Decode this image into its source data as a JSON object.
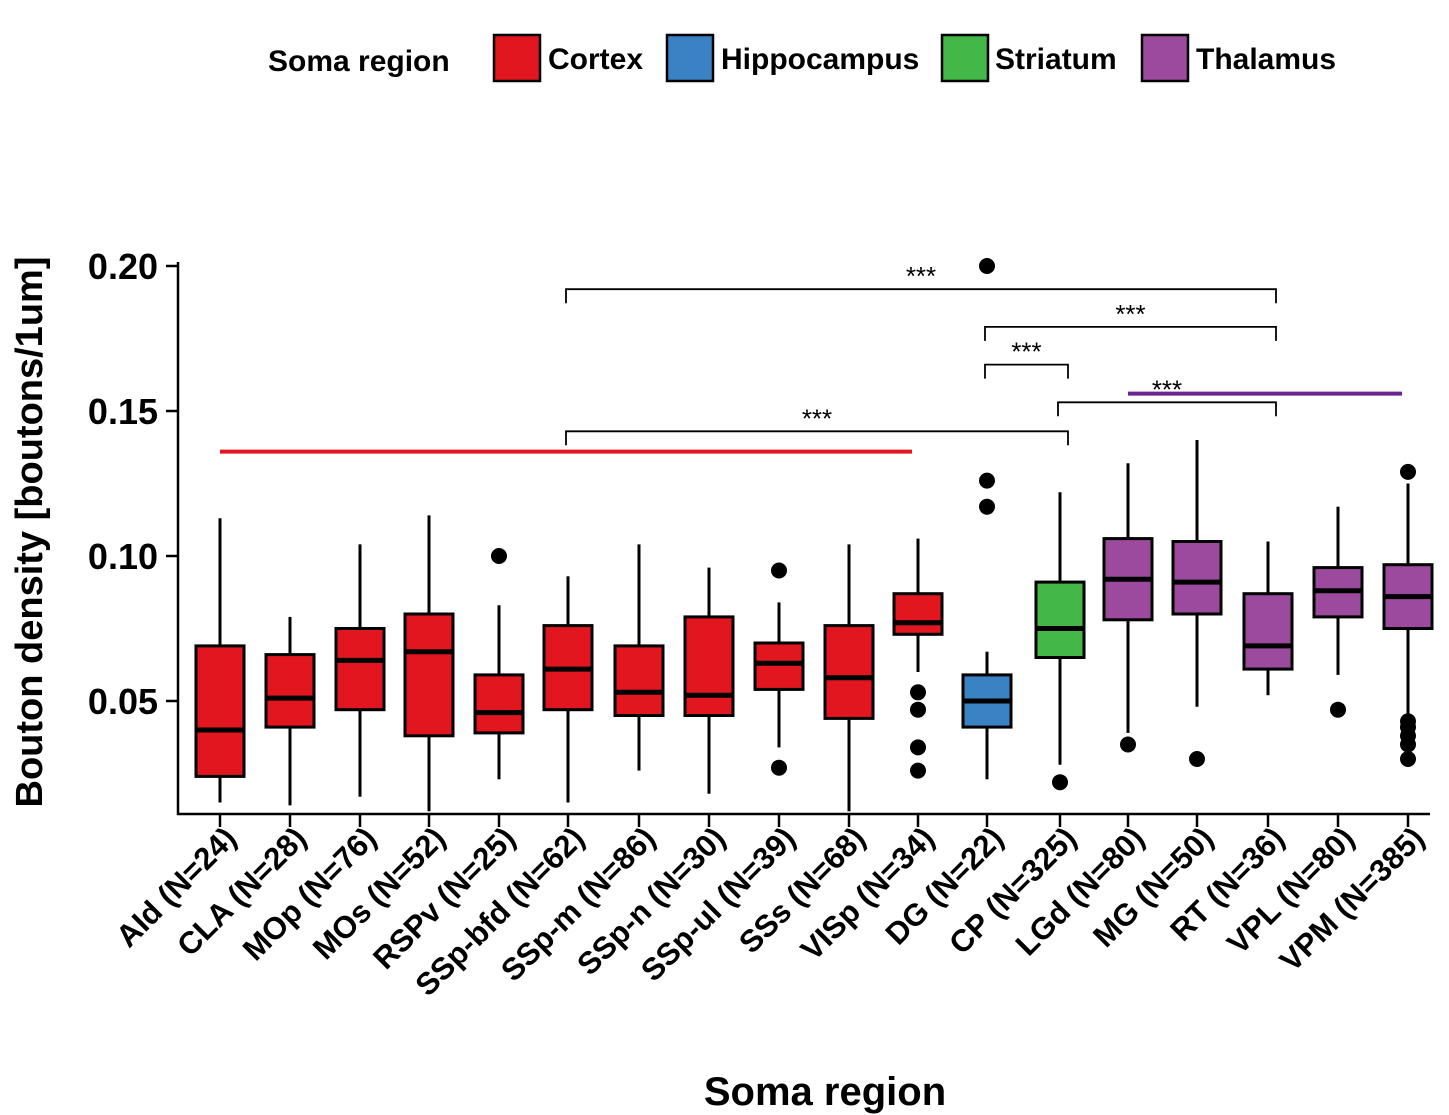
{
  "chart_data": {
    "type": "boxplot",
    "title": "",
    "xlabel": "Soma region",
    "ylabel": "Bouton density [boutons/1um]",
    "ylim": [
      0.012,
      0.2
    ],
    "yticks": [
      0.05,
      0.1,
      0.15,
      0.2
    ],
    "ytick_labels": [
      "0.05",
      "0.10",
      "0.15",
      "0.20"
    ],
    "legend": {
      "title": "Soma region",
      "placement": "top-center",
      "entries": [
        {
          "name": "Cortex",
          "color": "#e2161f"
        },
        {
          "name": "Hippocampus",
          "color": "#3a82c4"
        },
        {
          "name": "Striatum",
          "color": "#44b749"
        },
        {
          "name": "Thalamus",
          "color": "#9b4a9e"
        }
      ]
    },
    "categories": [
      {
        "label": "AId (N=24)",
        "group": "Cortex",
        "whisker_low": 0.015,
        "q1": 0.024,
        "median": 0.04,
        "q3": 0.069,
        "whisker_high": 0.113,
        "outliers": []
      },
      {
        "label": "CLA (N=28)",
        "group": "Cortex",
        "whisker_low": 0.014,
        "q1": 0.041,
        "median": 0.051,
        "q3": 0.066,
        "whisker_high": 0.079,
        "outliers": []
      },
      {
        "label": "MOp (N=76)",
        "group": "Cortex",
        "whisker_low": 0.017,
        "q1": 0.047,
        "median": 0.064,
        "q3": 0.075,
        "whisker_high": 0.104,
        "outliers": []
      },
      {
        "label": "MOs (N=52)",
        "group": "Cortex",
        "whisker_low": 0.012,
        "q1": 0.038,
        "median": 0.067,
        "q3": 0.08,
        "whisker_high": 0.114,
        "outliers": []
      },
      {
        "label": "RSPv (N=25)",
        "group": "Cortex",
        "whisker_low": 0.023,
        "q1": 0.039,
        "median": 0.046,
        "q3": 0.059,
        "whisker_high": 0.083,
        "outliers": [
          0.1
        ]
      },
      {
        "label": "SSp-bfd (N=62)",
        "group": "Cortex",
        "whisker_low": 0.015,
        "q1": 0.047,
        "median": 0.061,
        "q3": 0.076,
        "whisker_high": 0.093,
        "outliers": []
      },
      {
        "label": "SSp-m (N=86)",
        "group": "Cortex",
        "whisker_low": 0.026,
        "q1": 0.045,
        "median": 0.053,
        "q3": 0.069,
        "whisker_high": 0.104,
        "outliers": []
      },
      {
        "label": "SSp-n (N=30)",
        "group": "Cortex",
        "whisker_low": 0.018,
        "q1": 0.045,
        "median": 0.052,
        "q3": 0.079,
        "whisker_high": 0.096,
        "outliers": []
      },
      {
        "label": "SSp-ul (N=39)",
        "group": "Cortex",
        "whisker_low": 0.034,
        "q1": 0.054,
        "median": 0.063,
        "q3": 0.07,
        "whisker_high": 0.084,
        "outliers": [
          0.027,
          0.095
        ]
      },
      {
        "label": "SSs (N=68)",
        "group": "Cortex",
        "whisker_low": 0.012,
        "q1": 0.044,
        "median": 0.058,
        "q3": 0.076,
        "whisker_high": 0.104,
        "outliers": []
      },
      {
        "label": "VISp (N=34)",
        "group": "Cortex",
        "whisker_low": 0.06,
        "q1": 0.073,
        "median": 0.077,
        "q3": 0.087,
        "whisker_high": 0.106,
        "outliers": [
          0.026,
          0.034,
          0.047,
          0.053
        ]
      },
      {
        "label": "DG (N=22)",
        "group": "Hippocampus",
        "whisker_low": 0.023,
        "q1": 0.041,
        "median": 0.05,
        "q3": 0.059,
        "whisker_high": 0.067,
        "outliers": [
          0.117,
          0.126,
          0.2
        ]
      },
      {
        "label": "CP (N=325)",
        "group": "Striatum",
        "whisker_low": 0.028,
        "q1": 0.065,
        "median": 0.075,
        "q3": 0.091,
        "whisker_high": 0.122,
        "outliers": [
          0.022
        ]
      },
      {
        "label": "LGd (N=80)",
        "group": "Thalamus",
        "whisker_low": 0.039,
        "q1": 0.078,
        "median": 0.092,
        "q3": 0.106,
        "whisker_high": 0.132,
        "outliers": [
          0.035
        ]
      },
      {
        "label": "MG (N=50)",
        "group": "Thalamus",
        "whisker_low": 0.048,
        "q1": 0.08,
        "median": 0.091,
        "q3": 0.105,
        "whisker_high": 0.14,
        "outliers": [
          0.03
        ]
      },
      {
        "label": "RT (N=36)",
        "group": "Thalamus",
        "whisker_low": 0.052,
        "q1": 0.061,
        "median": 0.069,
        "q3": 0.087,
        "whisker_high": 0.105,
        "outliers": []
      },
      {
        "label": "VPL (N=80)",
        "group": "Thalamus",
        "whisker_low": 0.059,
        "q1": 0.079,
        "median": 0.088,
        "q3": 0.096,
        "whisker_high": 0.117,
        "outliers": [
          0.047
        ]
      },
      {
        "label": "VPM (N=385)",
        "group": "Thalamus",
        "whisker_low": 0.044,
        "q1": 0.075,
        "median": 0.086,
        "q3": 0.097,
        "whisker_high": 0.125,
        "outliers": [
          0.03,
          0.035,
          0.038,
          0.041,
          0.043,
          0.129
        ]
      }
    ],
    "significance": [
      {
        "label": "***",
        "from": "SSp-bfd (N=62)",
        "to": "RT (N=36)",
        "y": 0.192
      },
      {
        "label": "***",
        "from": "DG (N=22)",
        "to": "RT (N=36)",
        "y": 0.179
      },
      {
        "label": "***",
        "from": "DG (N=22)",
        "to": "CP (N=325)",
        "y": 0.166
      },
      {
        "label": "***",
        "from": "CP (N=325)",
        "to": "RT (N=36)",
        "y": 0.153
      },
      {
        "label": "***",
        "from": "SSp-bfd (N=62)",
        "to": "CP (N=325)",
        "y": 0.143
      }
    ],
    "group_lines": [
      {
        "group": "Cortex",
        "from": "AId (N=24)",
        "to": "VISp (N=34)",
        "y": 0.136,
        "color": "#e2161f"
      },
      {
        "group": "Thalamus",
        "from": "LGd (N=80)",
        "to": "VPM (N=385)",
        "y": 0.156,
        "color": "#6a2490"
      }
    ]
  }
}
